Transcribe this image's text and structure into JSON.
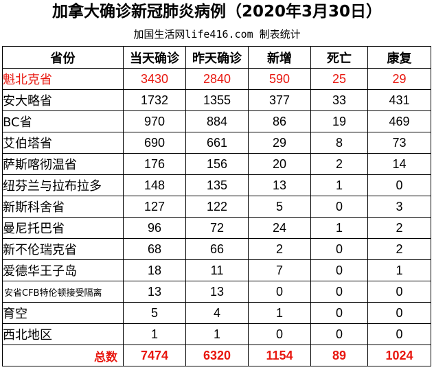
{
  "title": "加拿大确诊新冠肺炎病例（2020年3月30日）",
  "subtitle": "加国生活网life416.com 制表统计",
  "colors": {
    "highlight": "#e8170f",
    "text": "#000000",
    "border": "#000000"
  },
  "table": {
    "headers": [
      "省份",
      "当天确诊",
      "昨天确诊",
      "新增",
      "死亡",
      "康复"
    ],
    "rows": [
      [
        "魁北克省",
        "3430",
        "2840",
        "590",
        "25",
        "29"
      ],
      [
        "安大略省",
        "1732",
        "1355",
        "377",
        "33",
        "431"
      ],
      [
        "BC省",
        "970",
        "884",
        "86",
        "19",
        "469"
      ],
      [
        "艾伯塔省",
        "690",
        "661",
        "29",
        "8",
        "73"
      ],
      [
        "萨斯喀彻温省",
        "176",
        "156",
        "20",
        "2",
        "14"
      ],
      [
        "纽芬兰与拉布拉多",
        "148",
        "135",
        "13",
        "1",
        "0"
      ],
      [
        "新斯科舍省",
        "127",
        "122",
        "5",
        "0",
        "3"
      ],
      [
        "曼尼托巴省",
        "96",
        "72",
        "24",
        "1",
        "2"
      ],
      [
        "新不伦瑞克省",
        "68",
        "66",
        "2",
        "0",
        "2"
      ],
      [
        "爱德华王子岛",
        "18",
        "11",
        "7",
        "0",
        "1"
      ],
      [
        "安省CFB特伦顿接受隔离",
        "13",
        "13",
        "0",
        "0",
        "0"
      ],
      [
        "育空",
        "5",
        "4",
        "1",
        "0",
        "0"
      ],
      [
        "西北地区",
        "1",
        "1",
        "0",
        "0",
        "0"
      ]
    ],
    "total": [
      "总数",
      "7474",
      "6320",
      "1154",
      "89",
      "1024"
    ]
  }
}
